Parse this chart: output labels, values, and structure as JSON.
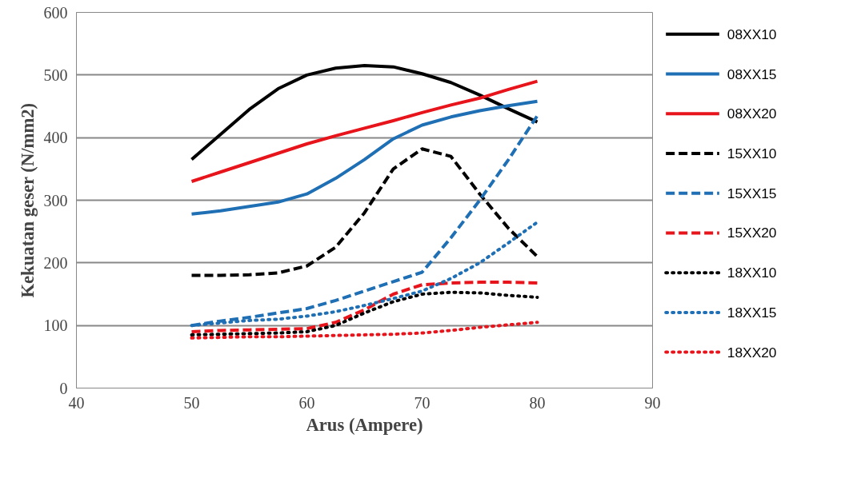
{
  "chart_data": {
    "type": "line",
    "xlabel": "Arus (Ampere)",
    "ylabel": "Kekuatan geser (N/mm2)",
    "x": [
      50,
      52.5,
      55,
      57.5,
      60,
      62.5,
      65,
      67.5,
      70,
      72.5,
      75,
      77.5,
      80
    ],
    "xlim": [
      40,
      90
    ],
    "xticks": [
      40,
      50,
      60,
      70,
      80,
      90
    ],
    "ylim": [
      0,
      600
    ],
    "yticks": [
      0,
      100,
      200,
      300,
      400,
      500,
      600
    ],
    "grid": "y",
    "legend": "right",
    "marker": "none",
    "series": [
      {
        "name": "08XX10",
        "color": "#000000",
        "line_style": "solid",
        "values": [
          365,
          405,
          445,
          478,
          500,
          511,
          515,
          513,
          502,
          488,
          468,
          446,
          425
        ]
      },
      {
        "name": "08XX15",
        "color": "#1f6fb5",
        "line_style": "solid",
        "values": [
          278,
          283,
          290,
          297,
          310,
          335,
          365,
          398,
          420,
          433,
          443,
          451,
          458
        ]
      },
      {
        "name": "08XX20",
        "color": "#e8141b",
        "line_style": "solid",
        "values": [
          330,
          345,
          360,
          375,
          390,
          403,
          415,
          427,
          440,
          452,
          463,
          477,
          490
        ]
      },
      {
        "name": "15XX10",
        "color": "#000000",
        "line_style": "dashed",
        "values": [
          180,
          180,
          181,
          184,
          195,
          225,
          280,
          350,
          382,
          370,
          310,
          255,
          210
        ]
      },
      {
        "name": "15XX15",
        "color": "#1f6fb5",
        "line_style": "dashed",
        "values": [
          100,
          107,
          113,
          120,
          127,
          140,
          155,
          170,
          185,
          240,
          300,
          365,
          435
        ]
      },
      {
        "name": "15XX20",
        "color": "#e8141b",
        "line_style": "dashed",
        "values": [
          90,
          92,
          93,
          94,
          95,
          105,
          125,
          150,
          165,
          168,
          169,
          169,
          168
        ]
      },
      {
        "name": "18XX10",
        "color": "#000000",
        "line_style": "dotted",
        "values": [
          85,
          86,
          87,
          88,
          90,
          100,
          120,
          138,
          150,
          153,
          152,
          148,
          145
        ]
      },
      {
        "name": "18XX15",
        "color": "#1f6fb5",
        "line_style": "dotted",
        "values": [
          100,
          104,
          108,
          110,
          115,
          122,
          132,
          143,
          155,
          175,
          200,
          232,
          265
        ]
      },
      {
        "name": "18XX20",
        "color": "#e8141b",
        "line_style": "dotted",
        "values": [
          80,
          81,
          82,
          82,
          83,
          84,
          85,
          86,
          88,
          92,
          97,
          101,
          105
        ]
      }
    ]
  }
}
